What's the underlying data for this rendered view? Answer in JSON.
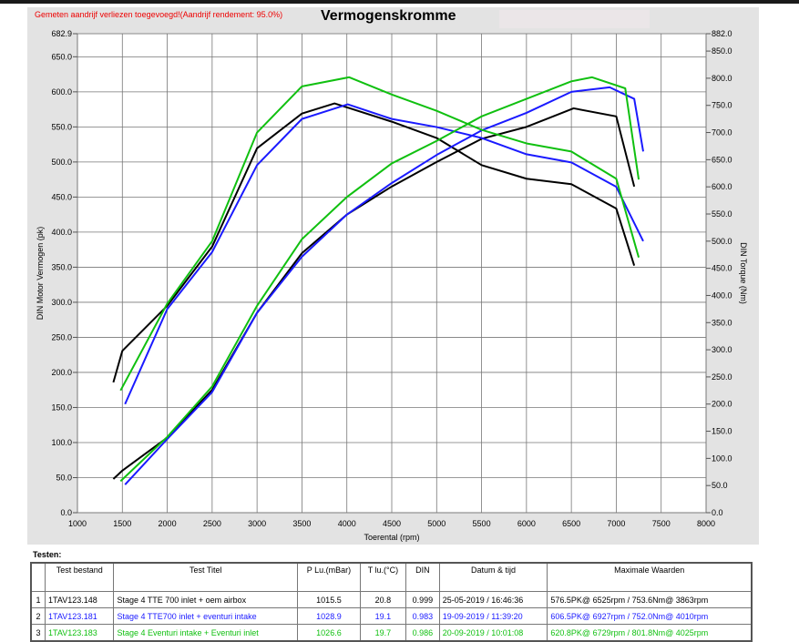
{
  "header": {
    "note": "Gemeten aandrijf verliezen toegevoegd!(Aandrijf rendement: 95.0%)",
    "title": "Vermogenskromme"
  },
  "chart_data": {
    "type": "line",
    "title": "Vermogenskromme",
    "xlabel": "Toerental (rpm)",
    "ylabel": "DIN Motor Vermogen (pk)",
    "y2label": "DIN Torque (Nm)",
    "xlim": [
      1000,
      8000
    ],
    "ylim": [
      0,
      682.9
    ],
    "y2lim": [
      0,
      882
    ],
    "xticks": [
      "1000",
      "1500",
      "2000",
      "2500",
      "3000",
      "3500",
      "4000",
      "4500",
      "5000",
      "5500",
      "6000",
      "6500",
      "7000",
      "7500",
      "8000"
    ],
    "yticks": [
      "0.0",
      "50.0",
      "100.0",
      "150.0",
      "200.0",
      "250.0",
      "300.0",
      "350.0",
      "400.0",
      "450.0",
      "500.0",
      "550.0",
      "600.0",
      "650.0",
      "682.9"
    ],
    "y2ticks": [
      "0.0",
      "50.0",
      "100.0",
      "150.0",
      "200.0",
      "250.0",
      "300.0",
      "350.0",
      "400.0",
      "450.0",
      "500.0",
      "550.0",
      "600.0",
      "650.0",
      "700.0",
      "750.0",
      "800.0",
      "850.0",
      "882.0"
    ],
    "grid": true,
    "series": [
      {
        "color": "#000000",
        "axis": "power",
        "x": [
          1400,
          1500,
          2000,
          2500,
          3000,
          3500,
          4000,
          4500,
          5000,
          5500,
          6000,
          6525,
          7000,
          7200
        ],
        "y": [
          48,
          60,
          107,
          175,
          285,
          370,
          425,
          465,
          500,
          533,
          550,
          576.5,
          565,
          465
        ]
      },
      {
        "color": "#000000",
        "axis": "torque",
        "x": [
          1400,
          1500,
          2000,
          2500,
          3000,
          3500,
          3863,
          4500,
          5000,
          5500,
          6000,
          6500,
          7000,
          7200
        ],
        "y": [
          240,
          298,
          381,
          490,
          671,
          735,
          753.6,
          720,
          690,
          640,
          615,
          605,
          560,
          455
        ]
      },
      {
        "color": "#1a1aff",
        "axis": "power",
        "x": [
          1530,
          2000,
          2500,
          3000,
          3500,
          4000,
          4500,
          5000,
          5500,
          6000,
          6500,
          6927,
          7200,
          7300
        ],
        "y": [
          40,
          105,
          172,
          285,
          365,
          425,
          470,
          510,
          545,
          570,
          600,
          606.5,
          590,
          515
        ]
      },
      {
        "color": "#1a1aff",
        "axis": "torque",
        "x": [
          1530,
          2000,
          2500,
          3000,
          3500,
          4010,
          4500,
          5000,
          5500,
          6000,
          6500,
          7000,
          7300
        ],
        "y": [
          200,
          375,
          480,
          640,
          725,
          752,
          725,
          710,
          690,
          660,
          645,
          600,
          500
        ]
      },
      {
        "color": "#10c010",
        "axis": "power",
        "x": [
          1480,
          2000,
          2500,
          3000,
          3500,
          4000,
          4500,
          5000,
          5500,
          6000,
          6500,
          6729,
          7100,
          7250
        ],
        "y": [
          45,
          108,
          180,
          295,
          390,
          450,
          498,
          530,
          565,
          590,
          615,
          620.8,
          605,
          475
        ]
      },
      {
        "color": "#10c010",
        "axis": "torque",
        "x": [
          1480,
          2000,
          2500,
          3000,
          3500,
          4025,
          4500,
          5000,
          5500,
          6000,
          6500,
          7000,
          7250
        ],
        "y": [
          225,
          385,
          500,
          700,
          785,
          801.8,
          770,
          740,
          705,
          680,
          665,
          615,
          470
        ]
      }
    ]
  },
  "table": {
    "label": "Testen:",
    "headers": [
      "",
      "Test bestand",
      "Test Titel",
      "P Lu.(mBar)",
      "T lu.(°C)",
      "DIN",
      "Datum & tijd",
      "Maximale Waarden"
    ],
    "rows": [
      {
        "color": "#000000",
        "cells": [
          "1",
          "1TAV123.148",
          "Stage 4 TTE 700  inlet + oem airbox",
          "1015.5",
          "20.8",
          "0.999",
          "25-05-2019 / 16:46:36",
          "576.5PK@ 6525rpm / 753.6Nm@ 3863rpm"
        ]
      },
      {
        "color": "#1a1aff",
        "cells": [
          "2",
          "1TAV123.181",
          "Stage 4 TTE700 inlet + eventuri intake",
          "1028.9",
          "19.1",
          "0.983",
          "19-09-2019 / 11:39:20",
          "606.5PK@ 6927rpm / 752.0Nm@ 4010rpm"
        ]
      },
      {
        "color": "#10c010",
        "cells": [
          "3",
          "1TAV123.183",
          "Stage 4 Eventuri intake + Eventuri inlet",
          "1026.6",
          "19.7",
          "0.986",
          "20-09-2019 / 10:01:08",
          "620.8PK@ 6729rpm / 801.8Nm@ 4025rpm"
        ]
      }
    ]
  }
}
